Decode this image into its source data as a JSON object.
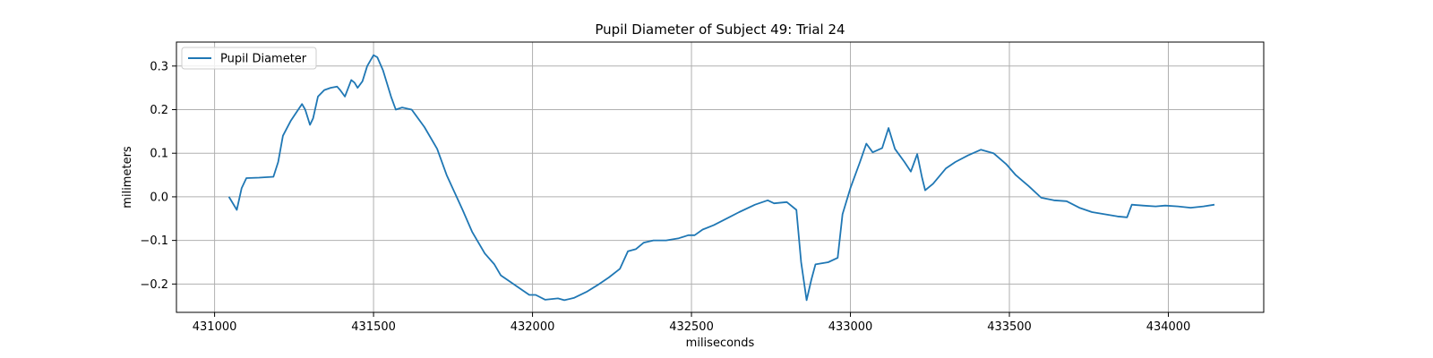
{
  "chart_data": {
    "type": "line",
    "title": "Pupil Diameter of Subject 49: Trial 24",
    "xlabel": "miliseconds",
    "ylabel": "milimeters",
    "xlim": [
      430880,
      434300
    ],
    "ylim": [
      -0.265,
      0.355
    ],
    "x_ticks": [
      431000,
      431500,
      432000,
      432500,
      433000,
      433500,
      434000
    ],
    "y_ticks": [
      -0.2,
      -0.1,
      0.0,
      0.1,
      0.2,
      0.3
    ],
    "y_tick_labels": [
      "−0.2",
      "−0.1",
      "0.0",
      "0.1",
      "0.2",
      "0.3"
    ],
    "grid": true,
    "legend_position": "top-left",
    "series": [
      {
        "name": "Pupil Diameter",
        "color": "#1f77b4",
        "points": [
          [
            431045,
            0.0
          ],
          [
            431070,
            -0.03
          ],
          [
            431085,
            0.02
          ],
          [
            431100,
            0.043
          ],
          [
            431140,
            0.044
          ],
          [
            431185,
            0.046
          ],
          [
            431200,
            0.08
          ],
          [
            431215,
            0.14
          ],
          [
            431240,
            0.175
          ],
          [
            431275,
            0.213
          ],
          [
            431285,
            0.2
          ],
          [
            431300,
            0.165
          ],
          [
            431310,
            0.18
          ],
          [
            431325,
            0.23
          ],
          [
            431345,
            0.245
          ],
          [
            431365,
            0.25
          ],
          [
            431385,
            0.253
          ],
          [
            431395,
            0.245
          ],
          [
            431410,
            0.23
          ],
          [
            431430,
            0.268
          ],
          [
            431440,
            0.262
          ],
          [
            431450,
            0.25
          ],
          [
            431465,
            0.265
          ],
          [
            431480,
            0.3
          ],
          [
            431500,
            0.325
          ],
          [
            431512,
            0.32
          ],
          [
            431530,
            0.29
          ],
          [
            431555,
            0.23
          ],
          [
            431570,
            0.2
          ],
          [
            431590,
            0.205
          ],
          [
            431620,
            0.2
          ],
          [
            431660,
            0.16
          ],
          [
            431700,
            0.11
          ],
          [
            431730,
            0.05
          ],
          [
            431780,
            -0.03
          ],
          [
            431810,
            -0.08
          ],
          [
            431850,
            -0.13
          ],
          [
            431880,
            -0.155
          ],
          [
            431900,
            -0.18
          ],
          [
            431930,
            -0.195
          ],
          [
            431960,
            -0.21
          ],
          [
            431990,
            -0.225
          ],
          [
            432010,
            -0.225
          ],
          [
            432040,
            -0.236
          ],
          [
            432080,
            -0.233
          ],
          [
            432100,
            -0.237
          ],
          [
            432130,
            -0.232
          ],
          [
            432170,
            -0.218
          ],
          [
            432210,
            -0.2
          ],
          [
            432240,
            -0.185
          ],
          [
            432275,
            -0.165
          ],
          [
            432300,
            -0.125
          ],
          [
            432325,
            -0.12
          ],
          [
            432350,
            -0.105
          ],
          [
            432380,
            -0.1
          ],
          [
            432420,
            -0.1
          ],
          [
            432460,
            -0.095
          ],
          [
            432490,
            -0.088
          ],
          [
            432510,
            -0.088
          ],
          [
            432535,
            -0.075
          ],
          [
            432570,
            -0.065
          ],
          [
            432610,
            -0.05
          ],
          [
            432650,
            -0.035
          ],
          [
            432700,
            -0.018
          ],
          [
            432740,
            -0.008
          ],
          [
            432760,
            -0.015
          ],
          [
            432800,
            -0.012
          ],
          [
            432830,
            -0.03
          ],
          [
            432845,
            -0.15
          ],
          [
            432862,
            -0.237
          ],
          [
            432877,
            -0.19
          ],
          [
            432890,
            -0.155
          ],
          [
            432930,
            -0.15
          ],
          [
            432960,
            -0.14
          ],
          [
            432975,
            -0.04
          ],
          [
            433000,
            0.02
          ],
          [
            433030,
            0.08
          ],
          [
            433050,
            0.122
          ],
          [
            433070,
            0.102
          ],
          [
            433100,
            0.112
          ],
          [
            433120,
            0.158
          ],
          [
            433140,
            0.11
          ],
          [
            433170,
            0.08
          ],
          [
            433190,
            0.058
          ],
          [
            433210,
            0.098
          ],
          [
            433225,
            0.045
          ],
          [
            433235,
            0.015
          ],
          [
            433260,
            0.03
          ],
          [
            433300,
            0.065
          ],
          [
            433330,
            0.08
          ],
          [
            433370,
            0.095
          ],
          [
            433410,
            0.108
          ],
          [
            433450,
            0.1
          ],
          [
            433490,
            0.075
          ],
          [
            433520,
            0.05
          ],
          [
            433560,
            0.025
          ],
          [
            433600,
            -0.002
          ],
          [
            433640,
            -0.008
          ],
          [
            433680,
            -0.01
          ],
          [
            433720,
            -0.025
          ],
          [
            433760,
            -0.035
          ],
          [
            433800,
            -0.04
          ],
          [
            433840,
            -0.045
          ],
          [
            433870,
            -0.047
          ],
          [
            433885,
            -0.018
          ],
          [
            433920,
            -0.02
          ],
          [
            433960,
            -0.022
          ],
          [
            433990,
            -0.02
          ],
          [
            434030,
            -0.022
          ],
          [
            434070,
            -0.025
          ],
          [
            434110,
            -0.022
          ],
          [
            434145,
            -0.018
          ]
        ]
      }
    ]
  }
}
